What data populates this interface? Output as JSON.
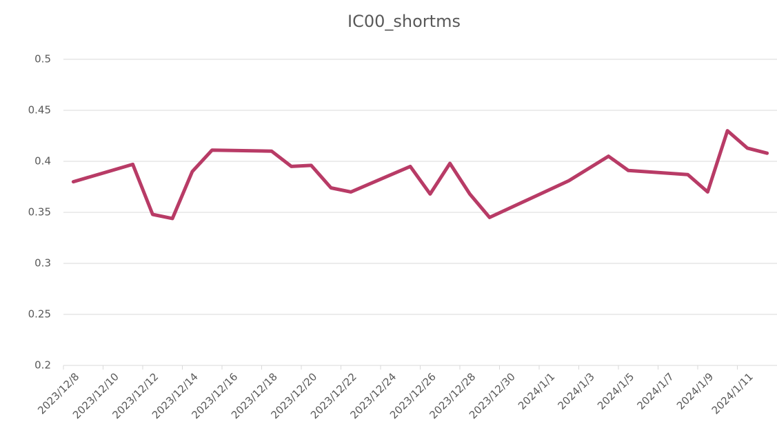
{
  "chart_data": {
    "type": "line",
    "title": "IC00_shortms",
    "x": [
      "2023/12/8",
      "2023/12/11",
      "2023/12/12",
      "2023/12/13",
      "2023/12/14",
      "2023/12/15",
      "2023/12/18",
      "2023/12/19",
      "2023/12/20",
      "2023/12/21",
      "2023/12/22",
      "2023/12/25",
      "2023/12/26",
      "2023/12/27",
      "2023/12/28",
      "2023/12/29",
      "2024/1/2",
      "2024/1/4",
      "2024/1/5",
      "2024/1/8",
      "2024/1/9",
      "2024/1/10",
      "2024/1/11",
      "2024/1/12"
    ],
    "series": [
      {
        "name": "IC00_shortms",
        "color": "#b83b66",
        "values": [
          0.38,
          0.397,
          0.348,
          0.344,
          0.39,
          0.411,
          0.41,
          0.395,
          0.396,
          0.374,
          0.37,
          0.395,
          0.368,
          0.398,
          0.368,
          0.345,
          0.381,
          0.405,
          0.391,
          0.387,
          0.37,
          0.43,
          0.413,
          0.408
        ]
      }
    ],
    "xlim": [
      "2023/12/8",
      "2024/1/12"
    ],
    "xticks": [
      "2023/12/8",
      "2023/12/10",
      "2023/12/12",
      "2023/12/14",
      "2023/12/16",
      "2023/12/18",
      "2023/12/20",
      "2023/12/22",
      "2023/12/24",
      "2023/12/26",
      "2023/12/28",
      "2023/12/30",
      "2024/1/1",
      "2024/1/3",
      "2024/1/5",
      "2024/1/7",
      "2024/1/9",
      "2024/1/11"
    ],
    "ylim": [
      0.2,
      0.5
    ],
    "yticks": [
      0.2,
      0.25,
      0.3,
      0.35,
      0.4,
      0.45,
      0.5
    ],
    "grid": true
  }
}
